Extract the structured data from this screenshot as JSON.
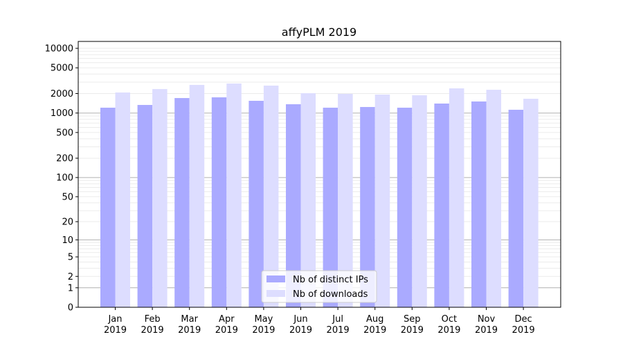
{
  "chart_data": {
    "type": "bar",
    "title": "affyPLM 2019",
    "xlabel": "",
    "ylabel": "",
    "yscale": "log(1+y)",
    "ylim": [
      0,
      12000
    ],
    "yticks": [
      0,
      1,
      2,
      5,
      10,
      20,
      50,
      100,
      200,
      500,
      1000,
      2000,
      5000,
      10000
    ],
    "grid": true,
    "legend_position": "bottom-center",
    "categories": [
      [
        "Jan",
        "2019"
      ],
      [
        "Feb",
        "2019"
      ],
      [
        "Mar",
        "2019"
      ],
      [
        "Apr",
        "2019"
      ],
      [
        "May",
        "2019"
      ],
      [
        "Jun",
        "2019"
      ],
      [
        "Jul",
        "2019"
      ],
      [
        "Aug",
        "2019"
      ],
      [
        "Sep",
        "2019"
      ],
      [
        "Oct",
        "2019"
      ],
      [
        "Nov",
        "2019"
      ],
      [
        "Dec",
        "2019"
      ]
    ],
    "series": [
      {
        "name": "Nb of distinct IPs",
        "color": "#aaaaff",
        "values": [
          1210,
          1334,
          1706,
          1749,
          1546,
          1368,
          1210,
          1240,
          1210,
          1402,
          1509,
          1124
        ]
      },
      {
        "name": "Nb of downloads",
        "color": "#ddddff",
        "values": [
          2077,
          2349,
          2722,
          2858,
          2655,
          2026,
          1977,
          1928,
          1883,
          2406,
          2292,
          1663
        ]
      }
    ]
  }
}
